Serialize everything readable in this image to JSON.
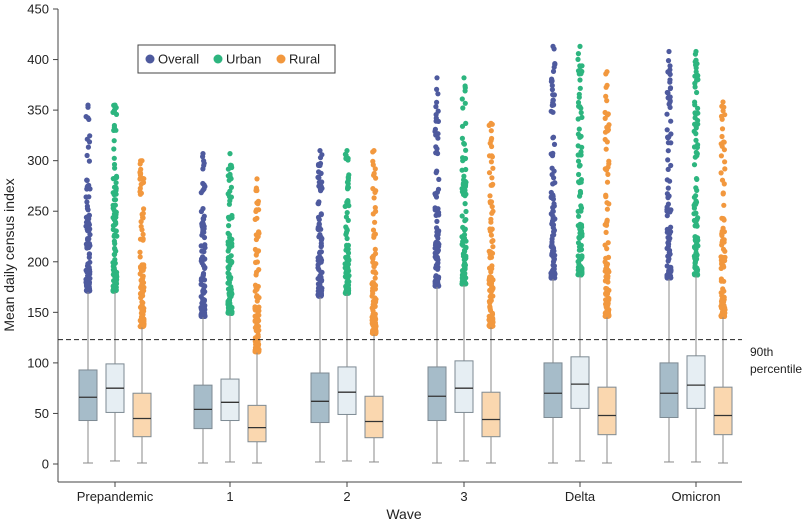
{
  "chart_data": {
    "type": "box",
    "xlabel": "Wave",
    "ylabel": "Mean daily census index",
    "ylim": [
      0,
      450
    ],
    "yticks": [
      0,
      50,
      100,
      150,
      200,
      250,
      300,
      350,
      400,
      450
    ],
    "categories": [
      "Prepandemic",
      "1",
      "2",
      "3",
      "Delta",
      "Omicron"
    ],
    "grid": false,
    "legend_position": "top-left",
    "reference_line": {
      "y": 123,
      "label_line1": "90th",
      "label_line2": "percentile",
      "style": "dashed"
    },
    "series": [
      {
        "name": "Overall",
        "marker_color": "#4E5A9E",
        "box_fill": "#A6BCC9",
        "boxes": [
          {
            "min": 1,
            "q1": 43,
            "median": 66,
            "q3": 93,
            "upper_whisker": 170,
            "max": 355
          },
          {
            "min": 1,
            "q1": 35,
            "median": 54,
            "q3": 78,
            "upper_whisker": 145,
            "max": 307
          },
          {
            "min": 2,
            "q1": 41,
            "median": 62,
            "q3": 90,
            "upper_whisker": 165,
            "max": 310
          },
          {
            "min": 1,
            "q1": 43,
            "median": 67,
            "q3": 96,
            "upper_whisker": 175,
            "max": 382
          },
          {
            "min": 1,
            "q1": 46,
            "median": 70,
            "q3": 100,
            "upper_whisker": 183,
            "max": 413
          },
          {
            "min": 2,
            "q1": 46,
            "median": 70,
            "q3": 100,
            "upper_whisker": 183,
            "max": 408
          }
        ]
      },
      {
        "name": "Urban",
        "marker_color": "#2DB57F",
        "box_fill": "#E6EEF3",
        "boxes": [
          {
            "min": 3,
            "q1": 51,
            "median": 75,
            "q3": 99,
            "upper_whisker": 170,
            "max": 355
          },
          {
            "min": 2,
            "q1": 43,
            "median": 61,
            "q3": 84,
            "upper_whisker": 148,
            "max": 307
          },
          {
            "min": 3,
            "q1": 49,
            "median": 71,
            "q3": 96,
            "upper_whisker": 168,
            "max": 310
          },
          {
            "min": 3,
            "q1": 51,
            "median": 75,
            "q3": 102,
            "upper_whisker": 177,
            "max": 382
          },
          {
            "min": 3,
            "q1": 55,
            "median": 79,
            "q3": 106,
            "upper_whisker": 186,
            "max": 413
          },
          {
            "min": 2,
            "q1": 55,
            "median": 78,
            "q3": 107,
            "upper_whisker": 186,
            "max": 408
          }
        ]
      },
      {
        "name": "Rural",
        "marker_color": "#F2983E",
        "box_fill": "#FAD7AF",
        "boxes": [
          {
            "min": 1,
            "q1": 27,
            "median": 45,
            "q3": 70,
            "upper_whisker": 135,
            "max": 300
          },
          {
            "min": 1,
            "q1": 22,
            "median": 36,
            "q3": 58,
            "upper_whisker": 110,
            "max": 282
          },
          {
            "min": 2,
            "q1": 26,
            "median": 42,
            "q3": 67,
            "upper_whisker": 128,
            "max": 310
          },
          {
            "min": 1,
            "q1": 27,
            "median": 44,
            "q3": 71,
            "upper_whisker": 135,
            "max": 337
          },
          {
            "min": 1,
            "q1": 29,
            "median": 48,
            "q3": 76,
            "upper_whisker": 145,
            "max": 388
          },
          {
            "min": 1,
            "q1": 29,
            "median": 48,
            "q3": 76,
            "upper_whisker": 145,
            "max": 358
          }
        ]
      }
    ]
  }
}
